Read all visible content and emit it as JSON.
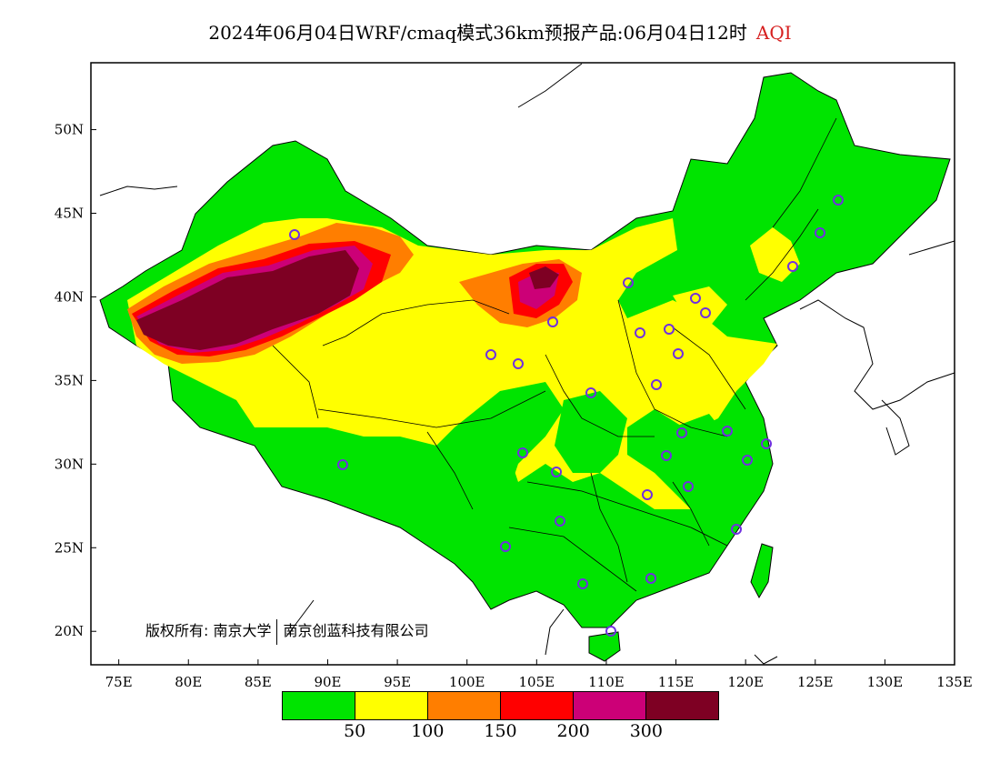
{
  "title": {
    "text": "2024年06月04日WRF/cmaq模式36km预报产品:06月04日12时",
    "variable": "AQI",
    "variable_color": "#d62020"
  },
  "axes": {
    "lon_labels": [
      "75E",
      "80E",
      "85E",
      "90E",
      "95E",
      "100E",
      "105E",
      "110E",
      "115E",
      "120E",
      "125E",
      "130E",
      "135E"
    ],
    "lat_labels": [
      "50N",
      "45N",
      "40N",
      "35N",
      "30N",
      "25N",
      "20N"
    ],
    "lon_range": [
      73,
      135
    ],
    "lat_range": [
      18,
      54
    ]
  },
  "legend": {
    "colors": [
      "#00e400",
      "#ffff00",
      "#ff7e00",
      "#ff0000",
      "#cc0077",
      "#7e0023"
    ],
    "thresholds": [
      "50",
      "100",
      "150",
      "200",
      "300"
    ]
  },
  "map_colors": {
    "land_good": "#00e400",
    "moderate": "#ffff00",
    "usg": "#ff7e00",
    "unhealthy": "#ff0000",
    "very_unhealthy": "#cc0077",
    "hazardous": "#7e0023",
    "station_marker": "#7030e0"
  },
  "copyright": {
    "left": "版权所有: 南京大学",
    "right": "南京创蓝科技有限公司"
  }
}
